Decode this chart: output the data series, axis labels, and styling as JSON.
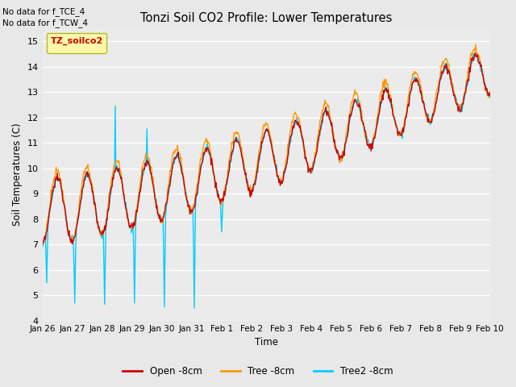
{
  "title": "Tonzi Soil CO2 Profile: Lower Temperatures",
  "ylabel": "Soil Temperatures (C)",
  "xlabel": "Time",
  "annotations": [
    "No data for f_TCE_4",
    "No data for f_TCW_4"
  ],
  "legend_label": "TZ_soilco2",
  "ylim": [
    4.0,
    15.5
  ],
  "yticks": [
    4.0,
    5.0,
    6.0,
    7.0,
    8.0,
    9.0,
    10.0,
    11.0,
    12.0,
    13.0,
    14.0,
    15.0
  ],
  "xtick_labels": [
    "Jan 26",
    "Jan 27",
    "Jan 28",
    "Jan 29",
    "Jan 30",
    "Jan 31",
    "Feb 1",
    "Feb 2",
    "Feb 3",
    "Feb 4",
    "Feb 5",
    "Feb 6",
    "Feb 7",
    "Feb 8",
    "Feb 9",
    "Feb 10"
  ],
  "colors": {
    "open": "#cc0000",
    "tree": "#ff9900",
    "tree2": "#00ccff"
  },
  "line_width": 1.0,
  "background_color": "#e8e8e8",
  "plot_bg_color": "#ebebeb",
  "legend_box_color": "#ffff99",
  "legend_text_color": "#cc0000",
  "figsize": [
    6.4,
    4.8
  ],
  "dpi": 100
}
